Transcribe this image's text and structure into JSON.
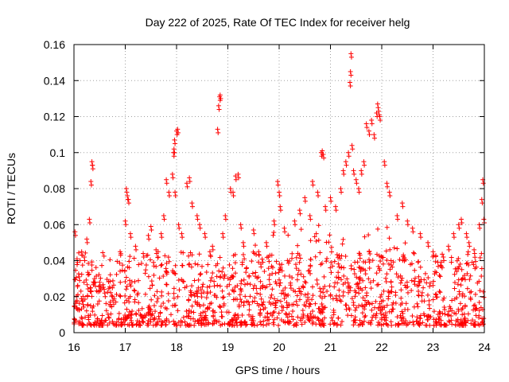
{
  "chart_data": {
    "type": "scatter",
    "title": "Day 222 of 2025, Rate Of TEC Index for receiver helg",
    "xlabel": "GPS time / hours",
    "ylabel": "ROTI / TECUs",
    "xlim": [
      16,
      24
    ],
    "ylim": [
      0,
      0.16
    ],
    "xticks": [
      16,
      17,
      18,
      19,
      20,
      21,
      22,
      23,
      24
    ],
    "xtick_labels": [
      "16",
      "17",
      "18",
      "19",
      "20",
      "21",
      "22",
      "23",
      "24"
    ],
    "yticks": [
      0,
      0.02,
      0.04,
      0.06,
      0.08,
      0.1,
      0.12,
      0.14,
      0.16
    ],
    "ytick_labels": [
      "0",
      "0.02",
      "0.04",
      "0.06",
      "0.08",
      "0.1",
      "0.12",
      "0.14",
      "0.16"
    ],
    "grid": true,
    "marker": "+",
    "series_color": "#ff0000",
    "series": [
      {
        "name": "ROTI",
        "points": [
          [
            16.02,
            0.056
          ],
          [
            16.06,
            0.041
          ],
          [
            16.1,
            0.031
          ],
          [
            16.15,
            0.045
          ],
          [
            16.2,
            0.042
          ],
          [
            16.25,
            0.052
          ],
          [
            16.3,
            0.063
          ],
          [
            16.33,
            0.084
          ],
          [
            16.35,
            0.095
          ],
          [
            16.36,
            0.093
          ],
          [
            16.4,
            0.03
          ],
          [
            16.5,
            0.028
          ],
          [
            16.6,
            0.022
          ],
          [
            16.75,
            0.02
          ],
          [
            16.9,
            0.045
          ],
          [
            17.0,
            0.062
          ],
          [
            17.02,
            0.08
          ],
          [
            17.04,
            0.076
          ],
          [
            17.06,
            0.074
          ],
          [
            17.1,
            0.055
          ],
          [
            17.2,
            0.048
          ],
          [
            17.35,
            0.044
          ],
          [
            17.45,
            0.054
          ],
          [
            17.5,
            0.059
          ],
          [
            17.55,
            0.039
          ],
          [
            17.6,
            0.046
          ],
          [
            17.7,
            0.055
          ],
          [
            17.75,
            0.065
          ],
          [
            17.8,
            0.085
          ],
          [
            17.85,
            0.078
          ],
          [
            17.92,
            0.088
          ],
          [
            17.94,
            0.1
          ],
          [
            17.95,
            0.102
          ],
          [
            17.96,
            0.107
          ],
          [
            17.97,
            0.078
          ],
          [
            18.0,
            0.112
          ],
          [
            18.02,
            0.113
          ],
          [
            18.04,
            0.06
          ],
          [
            18.1,
            0.055
          ],
          [
            18.2,
            0.083
          ],
          [
            18.25,
            0.086
          ],
          [
            18.3,
            0.072
          ],
          [
            18.4,
            0.065
          ],
          [
            18.45,
            0.06
          ],
          [
            18.55,
            0.055
          ],
          [
            18.65,
            0.045
          ],
          [
            18.7,
            0.048
          ],
          [
            18.8,
            0.113
          ],
          [
            18.82,
            0.126
          ],
          [
            18.84,
            0.131
          ],
          [
            18.85,
            0.132
          ],
          [
            18.9,
            0.055
          ],
          [
            18.95,
            0.065
          ],
          [
            19.05,
            0.08
          ],
          [
            19.1,
            0.078
          ],
          [
            19.15,
            0.087
          ],
          [
            19.2,
            0.088
          ],
          [
            19.25,
            0.06
          ],
          [
            19.3,
            0.05
          ],
          [
            19.5,
            0.057
          ],
          [
            19.6,
            0.045
          ],
          [
            19.75,
            0.05
          ],
          [
            19.9,
            0.062
          ],
          [
            19.97,
            0.084
          ],
          [
            20.0,
            0.078
          ],
          [
            20.02,
            0.07
          ],
          [
            20.1,
            0.058
          ],
          [
            20.3,
            0.062
          ],
          [
            20.4,
            0.068
          ],
          [
            20.5,
            0.075
          ],
          [
            20.6,
            0.065
          ],
          [
            20.65,
            0.084
          ],
          [
            20.75,
            0.078
          ],
          [
            20.82,
            0.1
          ],
          [
            20.84,
            0.101
          ],
          [
            20.86,
            0.099
          ],
          [
            20.9,
            0.07
          ],
          [
            21.0,
            0.075
          ],
          [
            21.1,
            0.07
          ],
          [
            21.2,
            0.08
          ],
          [
            21.25,
            0.09
          ],
          [
            21.3,
            0.095
          ],
          [
            21.35,
            0.1
          ],
          [
            21.38,
            0.139
          ],
          [
            21.39,
            0.145
          ],
          [
            21.4,
            0.155
          ],
          [
            21.42,
            0.104
          ],
          [
            21.45,
            0.09
          ],
          [
            21.5,
            0.085
          ],
          [
            21.55,
            0.08
          ],
          [
            21.6,
            0.09
          ],
          [
            21.65,
            0.095
          ],
          [
            21.7,
            0.116
          ],
          [
            21.75,
            0.112
          ],
          [
            21.8,
            0.118
          ],
          [
            21.85,
            0.11
          ],
          [
            21.9,
            0.122
          ],
          [
            21.92,
            0.127
          ],
          [
            21.94,
            0.123
          ],
          [
            21.96,
            0.12
          ],
          [
            22.05,
            0.095
          ],
          [
            22.1,
            0.083
          ],
          [
            22.15,
            0.078
          ],
          [
            22.3,
            0.065
          ],
          [
            22.4,
            0.072
          ],
          [
            22.5,
            0.062
          ],
          [
            22.6,
            0.058
          ],
          [
            22.75,
            0.055
          ],
          [
            22.9,
            0.05
          ],
          [
            23.0,
            0.045
          ],
          [
            23.2,
            0.042
          ],
          [
            23.3,
            0.048
          ],
          [
            23.4,
            0.055
          ],
          [
            23.5,
            0.06
          ],
          [
            23.55,
            0.063
          ],
          [
            23.65,
            0.055
          ],
          [
            23.7,
            0.05
          ],
          [
            23.8,
            0.046
          ],
          [
            23.9,
            0.06
          ],
          [
            23.95,
            0.074
          ],
          [
            23.97,
            0.085
          ],
          [
            23.99,
            0.063
          ]
        ]
      }
    ],
    "background_band": {
      "note": "dense cloud of many small-value points across the full time range",
      "x_range": [
        16,
        24
      ],
      "y_floor": 0.004,
      "y_typical_max": 0.045,
      "point_count": 1500
    }
  }
}
